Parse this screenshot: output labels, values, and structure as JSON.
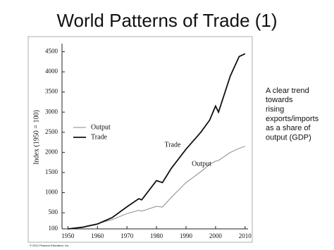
{
  "chart_data": {
    "type": "line",
    "title": "World Patterns of Trade (1)",
    "y_label": "Index (1950 = 100)",
    "x": [
      1950,
      1955,
      1960,
      1965,
      1970,
      1974,
      1975,
      1980,
      1982,
      1985,
      1990,
      1995,
      1998,
      2000,
      2001,
      2005,
      2008,
      2010
    ],
    "series": [
      {
        "name": "Output",
        "color": "#8a8a8a",
        "width": 1,
        "values": [
          100,
          150,
          230,
          330,
          480,
          560,
          540,
          660,
          640,
          880,
          1250,
          1520,
          1700,
          1780,
          1800,
          2000,
          2100,
          2150
        ]
      },
      {
        "name": "Trade",
        "color": "#111111",
        "width": 1.8,
        "values": [
          100,
          140,
          220,
          380,
          650,
          850,
          820,
          1300,
          1250,
          1600,
          2080,
          2500,
          2800,
          3150,
          3000,
          3900,
          4380,
          4450
        ]
      }
    ],
    "annotations": [
      "Trade",
      "Output"
    ],
    "xlim": [
      1948,
      2011
    ],
    "xticks": [
      1950,
      1960,
      1970,
      1980,
      1990,
      2000,
      2010
    ],
    "ylim": [
      100,
      4700
    ],
    "yticks": [
      100,
      500,
      1000,
      1500,
      2000,
      2500,
      3000,
      3500,
      4000,
      4500
    ],
    "grid": false,
    "copyright": "© 2012 Pearson Education, Inc.",
    "side_text": [
      "A clear trend",
      "towards",
      "rising",
      "exports/imports",
      "as a share of",
      "output (GDP)"
    ]
  }
}
